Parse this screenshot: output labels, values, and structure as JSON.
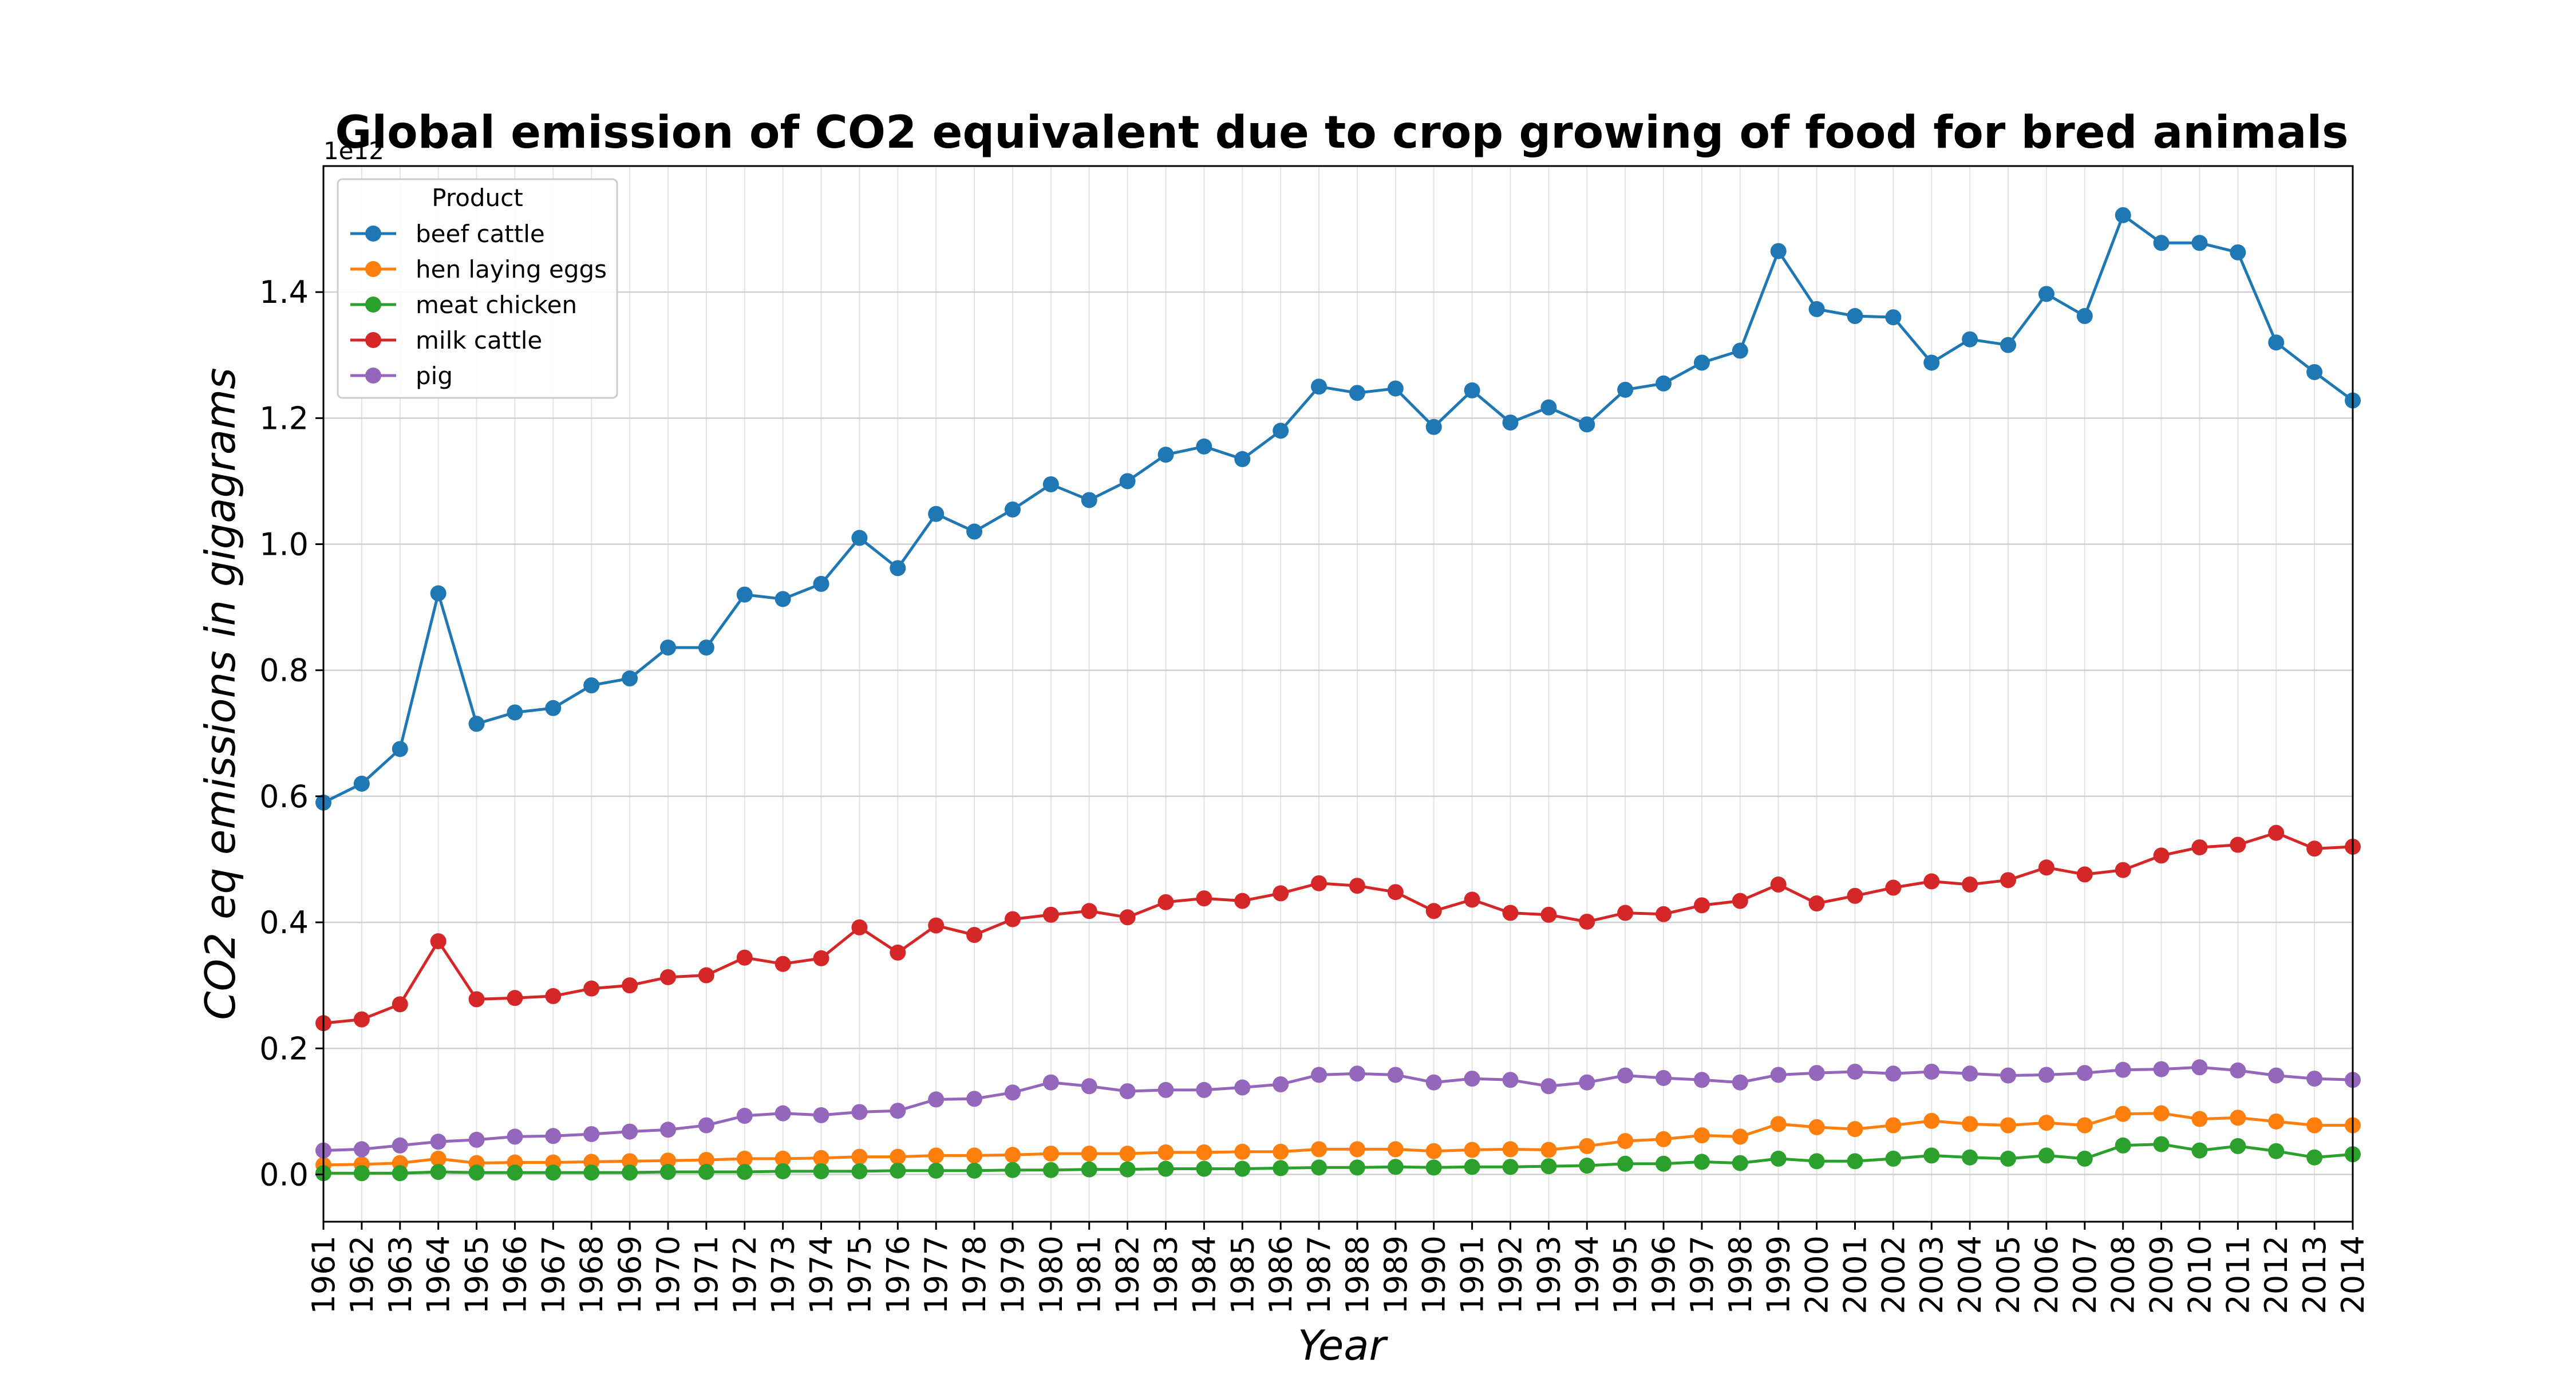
{
  "chart_data": {
    "type": "line",
    "title": "Global emission of CO2 equivalent due to crop growing of food for bred animals",
    "xlabel": "Year",
    "ylabel": "CO2 eq emissions in gigagrams",
    "y_offset_label": "1e12",
    "ylim": [
      -0.075,
      1.6
    ],
    "y_ticks": [
      "0.0",
      "0.2",
      "0.4",
      "0.6",
      "0.8",
      "1.0",
      "1.2",
      "1.4"
    ],
    "grid": true,
    "legend": {
      "title": "Product",
      "placement": "top-left"
    },
    "x": [
      "1961",
      "1962",
      "1963",
      "1964",
      "1965",
      "1966",
      "1967",
      "1968",
      "1969",
      "1970",
      "1971",
      "1972",
      "1973",
      "1974",
      "1975",
      "1976",
      "1977",
      "1978",
      "1979",
      "1980",
      "1981",
      "1982",
      "1983",
      "1984",
      "1985",
      "1986",
      "1987",
      "1988",
      "1989",
      "1990",
      "1991",
      "1992",
      "1993",
      "1994",
      "1995",
      "1996",
      "1997",
      "1998",
      "1999",
      "2000",
      "2001",
      "2002",
      "2003",
      "2004",
      "2005",
      "2006",
      "2007",
      "2008",
      "2009",
      "2010",
      "2011",
      "2012",
      "2013",
      "2014"
    ],
    "series": [
      {
        "name": "beef cattle",
        "color": "#1f77b4",
        "values": [
          0.59,
          0.62,
          0.675,
          0.922,
          0.715,
          0.733,
          0.74,
          0.776,
          0.787,
          0.836,
          0.836,
          0.92,
          0.913,
          0.937,
          1.01,
          0.962,
          1.048,
          1.02,
          1.055,
          1.095,
          1.07,
          1.1,
          1.142,
          1.155,
          1.135,
          1.18,
          1.25,
          1.24,
          1.247,
          1.186,
          1.244,
          1.193,
          1.217,
          1.19,
          1.245,
          1.255,
          1.288,
          1.307,
          1.465,
          1.373,
          1.362,
          1.36,
          1.288,
          1.325,
          1.316,
          1.397,
          1.362,
          1.522,
          1.478,
          1.478,
          1.463,
          1.32,
          1.273,
          1.228
        ]
      },
      {
        "name": "hen laying eggs",
        "color": "#ff7f0e",
        "values": [
          0.015,
          0.016,
          0.018,
          0.025,
          0.018,
          0.019,
          0.019,
          0.02,
          0.021,
          0.022,
          0.023,
          0.025,
          0.025,
          0.026,
          0.028,
          0.028,
          0.03,
          0.03,
          0.031,
          0.033,
          0.033,
          0.033,
          0.035,
          0.035,
          0.036,
          0.036,
          0.04,
          0.04,
          0.04,
          0.037,
          0.039,
          0.04,
          0.039,
          0.045,
          0.053,
          0.056,
          0.062,
          0.06,
          0.08,
          0.075,
          0.072,
          0.078,
          0.085,
          0.08,
          0.078,
          0.082,
          0.078,
          0.096,
          0.097,
          0.088,
          0.09,
          0.084,
          0.078,
          0.078
        ]
      },
      {
        "name": "meat chicken",
        "color": "#2ca02c",
        "values": [
          0.002,
          0.002,
          0.002,
          0.004,
          0.003,
          0.003,
          0.003,
          0.003,
          0.003,
          0.004,
          0.004,
          0.004,
          0.005,
          0.005,
          0.005,
          0.006,
          0.006,
          0.006,
          0.007,
          0.007,
          0.008,
          0.008,
          0.009,
          0.009,
          0.009,
          0.01,
          0.011,
          0.011,
          0.012,
          0.011,
          0.012,
          0.012,
          0.013,
          0.014,
          0.017,
          0.017,
          0.02,
          0.018,
          0.025,
          0.021,
          0.021,
          0.025,
          0.03,
          0.027,
          0.025,
          0.03,
          0.025,
          0.046,
          0.048,
          0.038,
          0.045,
          0.037,
          0.027,
          0.032
        ]
      },
      {
        "name": "milk cattle",
        "color": "#d62728",
        "values": [
          0.24,
          0.246,
          0.27,
          0.37,
          0.278,
          0.28,
          0.283,
          0.295,
          0.3,
          0.313,
          0.316,
          0.344,
          0.334,
          0.343,
          0.392,
          0.352,
          0.395,
          0.38,
          0.405,
          0.412,
          0.418,
          0.408,
          0.432,
          0.438,
          0.434,
          0.446,
          0.462,
          0.458,
          0.448,
          0.418,
          0.436,
          0.415,
          0.412,
          0.401,
          0.415,
          0.413,
          0.427,
          0.434,
          0.46,
          0.43,
          0.442,
          0.455,
          0.465,
          0.46,
          0.467,
          0.487,
          0.476,
          0.483,
          0.506,
          0.519,
          0.523,
          0.542,
          0.517,
          0.52
        ]
      },
      {
        "name": "pig",
        "color": "#9467bd",
        "values": [
          0.038,
          0.04,
          0.046,
          0.052,
          0.055,
          0.06,
          0.061,
          0.064,
          0.068,
          0.071,
          0.078,
          0.093,
          0.097,
          0.094,
          0.099,
          0.101,
          0.119,
          0.12,
          0.13,
          0.146,
          0.14,
          0.132,
          0.134,
          0.134,
          0.138,
          0.143,
          0.158,
          0.16,
          0.158,
          0.146,
          0.152,
          0.15,
          0.14,
          0.146,
          0.157,
          0.153,
          0.15,
          0.146,
          0.158,
          0.161,
          0.163,
          0.16,
          0.163,
          0.16,
          0.157,
          0.158,
          0.161,
          0.166,
          0.167,
          0.17,
          0.165,
          0.157,
          0.152,
          0.15
        ]
      }
    ]
  }
}
